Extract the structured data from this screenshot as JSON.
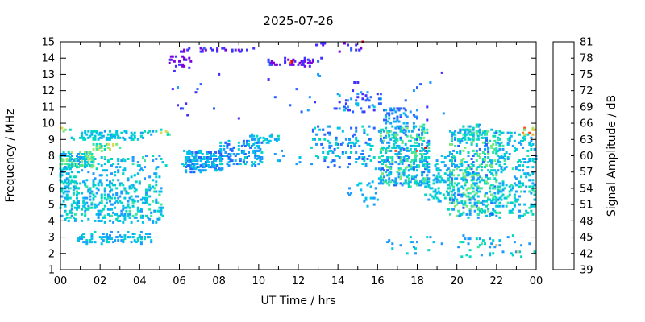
{
  "background_color": "#ffffff",
  "axis_color": "#000000",
  "chart_data": {
    "type": "scatter",
    "title": "2025-07-26",
    "xlabel": "UT Time / hrs",
    "ylabel": "Frequency / MHz",
    "colorbar_label": "Signal Amplitude / dB",
    "xlim": [
      0,
      24
    ],
    "ylim": [
      1,
      15
    ],
    "grid": false,
    "legend_position": "right-colorbar",
    "marker": "square",
    "marker_size_px": 3,
    "x_major_ticks": [
      0,
      2,
      4,
      6,
      8,
      10,
      12,
      14,
      16,
      18,
      20,
      22,
      24
    ],
    "x_tick_labels": [
      "00",
      "02",
      "04",
      "06",
      "08",
      "10",
      "12",
      "14",
      "16",
      "18",
      "20",
      "22",
      "00"
    ],
    "x_minor_ticks": [
      1,
      3,
      5,
      7,
      9,
      11,
      13,
      15,
      17,
      19,
      21,
      23
    ],
    "y_ticks": [
      1,
      2,
      3,
      4,
      5,
      6,
      7,
      8,
      9,
      10,
      11,
      12,
      13,
      14,
      15
    ],
    "colorbar": {
      "min": 39,
      "max": 81,
      "step": 3,
      "tick_labels": [
        39,
        42,
        45,
        48,
        51,
        54,
        57,
        60,
        63,
        66,
        69,
        72,
        75,
        78,
        81
      ],
      "colors": [
        "#7c00e0",
        "#4130ff",
        "#2a64ff",
        "#1e9bff",
        "#00c3e8",
        "#00d9c0",
        "#3ce6a0",
        "#7ce87c",
        "#b0e864",
        "#dcd850",
        "#e6b93c",
        "#f08828",
        "#ff4a14",
        "#e60000"
      ]
    },
    "clusters_format": "[t_start_hr, t_end_hr, f_min_MHz, f_max_MHz, n_points, amp_min_dB, amp_max_dB]",
    "clusters": [
      [
        0.0,
        1.7,
        7.3,
        8.2,
        130,
        48,
        66
      ],
      [
        0.0,
        0.8,
        6.3,
        7.3,
        40,
        48,
        57
      ],
      [
        0.8,
        5.0,
        6.4,
        7.4,
        60,
        48,
        56
      ],
      [
        0.0,
        5.2,
        4.2,
        6.4,
        330,
        48,
        58
      ],
      [
        0.0,
        5.2,
        3.9,
        4.3,
        40,
        50,
        55
      ],
      [
        0.8,
        4.6,
        2.6,
        3.3,
        90,
        48,
        57
      ],
      [
        0.5,
        4.2,
        9.0,
        9.2,
        55,
        50,
        57
      ],
      [
        1.0,
        4.9,
        9.3,
        9.55,
        45,
        48,
        57
      ],
      [
        1.4,
        3.2,
        8.3,
        8.7,
        25,
        54,
        69
      ],
      [
        0.0,
        5.5,
        7.4,
        8.0,
        60,
        48,
        60
      ],
      [
        5.0,
        5.5,
        9.2,
        9.6,
        10,
        51,
        69
      ],
      [
        0.0,
        0.5,
        9.5,
        9.8,
        4,
        54,
        69
      ],
      [
        5.5,
        6.6,
        13.4,
        14.1,
        22,
        39,
        45
      ],
      [
        6.1,
        6.5,
        14.3,
        14.6,
        6,
        39,
        44
      ],
      [
        7.0,
        9.8,
        14.4,
        14.6,
        22,
        39,
        46
      ],
      [
        6.2,
        8.2,
        7.0,
        8.3,
        170,
        45,
        55
      ],
      [
        8.0,
        10.2,
        7.4,
        9.0,
        130,
        45,
        55
      ],
      [
        9.6,
        11.2,
        8.8,
        9.3,
        28,
        48,
        55
      ],
      [
        10.5,
        12.5,
        7.5,
        8.6,
        8,
        48,
        54
      ],
      [
        10.4,
        13.2,
        13.5,
        14.0,
        48,
        39,
        46
      ],
      [
        11.5,
        11.7,
        13.7,
        13.9,
        2,
        77,
        81
      ],
      [
        12.8,
        13.4,
        14.8,
        15.0,
        5,
        39,
        44
      ],
      [
        13.9,
        15.4,
        14.4,
        15.0,
        10,
        39,
        48
      ],
      [
        15.1,
        15.3,
        14.8,
        15.0,
        1,
        79,
        81
      ],
      [
        12.6,
        16.2,
        7.2,
        9.8,
        140,
        45,
        56
      ],
      [
        13.8,
        16.2,
        10.7,
        11.9,
        45,
        42,
        52
      ],
      [
        5.5,
        19.5,
        10.2,
        13.4,
        35,
        42,
        51
      ],
      [
        5.9,
        6.4,
        10.9,
        11.3,
        4,
        42,
        48
      ],
      [
        6.8,
        7.3,
        11.9,
        12.4,
        3,
        42,
        48
      ],
      [
        14.5,
        16.0,
        4.8,
        6.5,
        25,
        48,
        55
      ],
      [
        16.1,
        18.6,
        6.1,
        9.9,
        420,
        46,
        62
      ],
      [
        16.3,
        18.0,
        9.9,
        10.9,
        45,
        45,
        54
      ],
      [
        16.5,
        18.5,
        8.1,
        8.6,
        3,
        72,
        81
      ],
      [
        16.5,
        19.5,
        2.0,
        3.2,
        18,
        48,
        55
      ],
      [
        18.4,
        19.8,
        5.2,
        8.0,
        90,
        48,
        57
      ],
      [
        19.6,
        22.2,
        4.2,
        9.6,
        520,
        47,
        63
      ],
      [
        20.3,
        21.2,
        9.0,
        9.9,
        40,
        48,
        60
      ],
      [
        22.0,
        24.0,
        4.2,
        9.4,
        210,
        48,
        58
      ],
      [
        23.3,
        24.0,
        9.3,
        9.7,
        10,
        60,
        81
      ],
      [
        20.0,
        24.0,
        1.8,
        3.1,
        45,
        48,
        58
      ],
      [
        21.9,
        22.1,
        2.4,
        2.6,
        1,
        69,
        72
      ],
      [
        23.0,
        23.2,
        2.0,
        2.2,
        1,
        66,
        69
      ]
    ]
  }
}
